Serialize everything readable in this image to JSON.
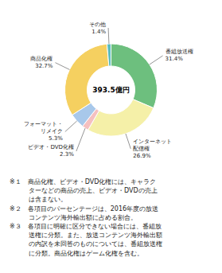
{
  "chart_data": {
    "type": "pie",
    "categories": [
      "番組放送権",
      "インターネット\n配信権",
      "ビデオ・DVD化権",
      "フォーマット・\nリメイク",
      "商品化権",
      "その他"
    ],
    "values": [
      31.4,
      26.9,
      2.3,
      5.3,
      32.7,
      1.4
    ],
    "value_labels": [
      "31.4%",
      "26.9%",
      "2.3%",
      "5.3%",
      "32.7%",
      "1.4%"
    ],
    "colors": [
      "#6dbf7e",
      "#f5f0a8",
      "#f5c0c0",
      "#a8c8ea",
      "#f5d060",
      "#5bbcbe"
    ],
    "data_labels": true,
    "annotations": [
      "393.5億円",
      "※１　商品化権、ビデオ・DVD化権には、キャラク\n　　　ターなどの商品の売上、ビデオ・DVDの売上\n　　　は含まない。\n※２　各項目のパーセンテージは、2016年度の放送\n　　　コンテンツ海外輸出額に占める割合。\n※３　各項目に明確に区分できない場合には、番組放\n　　　送権に分類。また、放送コンテンツ海外輸出額\n　　　の内訳を未回答のものについては、番組放送権\n　　　に分類。商品化権はゲーム化権を含む。"
    ]
  }
}
